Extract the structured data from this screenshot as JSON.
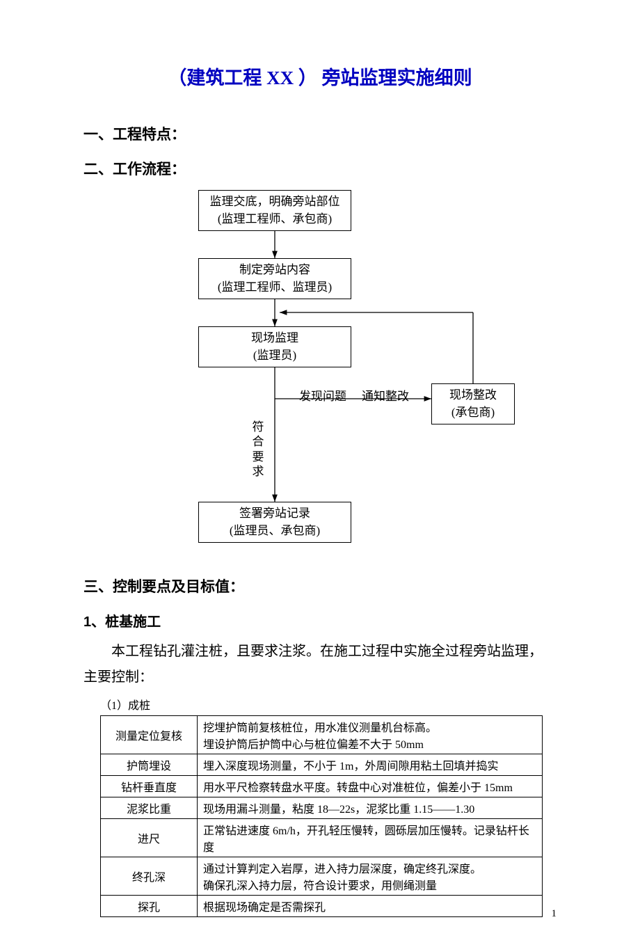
{
  "title": "（建筑工程 XX ） 旁站监理实施细则",
  "sections": {
    "s1": "一、工程特点：",
    "s2": "二、工作流程：",
    "s3": "三、控制要点及目标值：",
    "sub1": "1、桩基施工"
  },
  "body": {
    "p1_a": "本工程钻孔灌注桩，且要求注浆。在施工过程中实施全过程旁站监理，",
    "p1_b": "主要控制："
  },
  "flowchart": {
    "type": "flowchart",
    "box_border_color": "#000000",
    "box_bg_color": "#ffffff",
    "font_size": 17,
    "nodes": {
      "n1": {
        "line1": "监理交底，明确旁站部位",
        "line2": "(监理工程师、承包商)"
      },
      "n2": {
        "line1": "制定旁站内容",
        "line2": "(监理工程师、监理员)"
      },
      "n3": {
        "line1": "现场监理",
        "line2": "(监理员)"
      },
      "n4": {
        "line1": "签署旁站记录",
        "line2": "(监理员、承包商)"
      },
      "n5": {
        "line1": "现场整改",
        "line2": "(承包商)"
      }
    },
    "edge_labels": {
      "problem1": "发现问题",
      "problem2": "通知整改",
      "ok": "符合要求"
    }
  },
  "table": {
    "type": "table",
    "caption": "（1）成桩",
    "border_color": "#000000",
    "font_size": 16,
    "rows": [
      {
        "label": "测量定位复核",
        "value_lines": [
          "挖埋护筒前复核桩位，用水准仪测量机台标高。",
          "埋设护筒后护筒中心与桩位偏差不大于 50mm"
        ]
      },
      {
        "label": "护筒埋设",
        "value_lines": [
          "埋入深度现场测量，不小于 1m，外周间隙用粘土回填并捣实"
        ]
      },
      {
        "label": "钻杆垂直度",
        "value_lines": [
          "用水平尺检察转盘水平度。转盘中心对准桩位，偏差小于 15mm"
        ]
      },
      {
        "label": "泥浆比重",
        "value_lines": [
          "现场用漏斗测量，粘度 18—22s，泥浆比重 1.15——1.30"
        ]
      },
      {
        "label": "进尺",
        "value_lines": [
          "正常钻进速度 6m/h，开孔轻压慢转，圆砾层加压慢转。记录钻杆长度"
        ]
      },
      {
        "label": "终孔深",
        "value_lines": [
          "通过计算判定入岩厚，进入持力层深度，确定终孔深度。",
          "确保孔深入持力层，符合设计要求，用侧绳测量"
        ]
      },
      {
        "label": "探孔",
        "value_lines": [
          "根据现场确定是否需探孔"
        ]
      }
    ]
  },
  "page_number": "1",
  "colors": {
    "title_color": "#0000c0",
    "text_color": "#000000",
    "background": "#ffffff"
  }
}
